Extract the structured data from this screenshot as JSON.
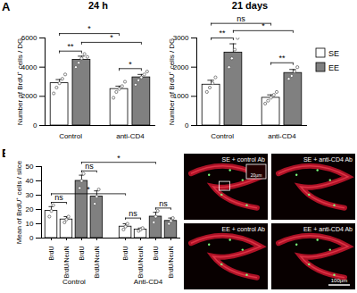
{
  "chart_data": [
    {
      "type": "bar",
      "panel": "A",
      "title": "24 h",
      "y_label": "Number of BrdU⁺ cells / DG",
      "categories": [
        "Control",
        "anti-CD4"
      ],
      "series": [
        {
          "name": "SE",
          "color": "#ffffff",
          "values": [
            2900,
            2500
          ],
          "errors": [
            250,
            200
          ],
          "points": [
            [
              2200,
              2600,
              2900,
              3200,
              3500
            ],
            [
              1900,
              2300,
              2500,
              2700,
              3000
            ]
          ]
        },
        {
          "name": "EE",
          "color": "#808080",
          "values": [
            4500,
            3300
          ],
          "errors": [
            250,
            200
          ],
          "points": [
            [
              4000,
              4300,
              4600,
              4900,
              4700
            ],
            [
              2800,
              3100,
              3300,
              3500,
              3700
            ]
          ]
        }
      ],
      "ylim": [
        0,
        6000
      ],
      "yticks": [
        0,
        2000,
        4000,
        6000
      ],
      "annotations": [
        {
          "text": "**",
          "from": 0,
          "to": 1,
          "y": 5100
        },
        {
          "text": "*",
          "from": 2,
          "to": 3,
          "y": 3900
        },
        {
          "text": "*",
          "from": 1,
          "to": 3,
          "y": 5700
        },
        {
          "text": "*",
          "from": 0,
          "to": 2,
          "y": 6300
        }
      ]
    },
    {
      "type": "bar",
      "title": "21 days",
      "y_label": "Number of BrdU⁺ cells / DG",
      "categories": [
        "Control",
        "anti-CD4"
      ],
      "series": [
        {
          "name": "SE",
          "color": "#ffffff",
          "values": [
            1400,
            950
          ],
          "errors": [
            150,
            100
          ],
          "points": [
            [
              1150,
              1300,
              1450,
              1650
            ],
            [
              750,
              850,
              950,
              1050,
              1150
            ]
          ]
        },
        {
          "name": "EE",
          "color": "#808080",
          "values": [
            2500,
            1800
          ],
          "errors": [
            300,
            120
          ],
          "points": [
            [
              2000,
              2300,
              2600,
              3000
            ],
            [
              1600,
              1700,
              1850,
              2000
            ]
          ]
        }
      ],
      "ylim": [
        0,
        3000
      ],
      "yticks": [
        0,
        1000,
        2000,
        3000
      ],
      "legend": "right",
      "annotations": [
        {
          "text": "**",
          "from": 0,
          "to": 1,
          "y": 3000
        },
        {
          "text": "**",
          "from": 2,
          "to": 3,
          "y": 2150
        },
        {
          "text": "*",
          "from": 1,
          "to": 3,
          "y": 3250
        },
        {
          "text": "ns",
          "from": 0,
          "to": 2,
          "y": 3500
        }
      ]
    },
    {
      "type": "bar",
      "panel": "B",
      "y_label": "Mean of BrdU⁺ cells / slice",
      "categories": [
        "Control",
        "Anti-CD4"
      ],
      "series": [
        {
          "name": "BrdU",
          "color": "#ffffff",
          "values": [
            19,
            8
          ],
          "errors": [
            3,
            2
          ],
          "points": [
            [
              15,
              19,
              23
            ],
            [
              6,
              8,
              10
            ]
          ]
        },
        {
          "name": "BrdU/NeuN",
          "color": "#ffffff",
          "values": [
            13,
            6
          ],
          "errors": [
            2,
            1
          ],
          "points": [
            [
              11,
              13,
              15
            ],
            [
              5,
              6,
              7
            ]
          ]
        },
        {
          "name": "BrdU",
          "color": "#808080",
          "values": [
            40,
            15
          ],
          "errors": [
            4,
            3
          ],
          "points": [
            [
              35,
              40,
              45
            ],
            [
              11,
              15,
              19
            ]
          ]
        },
        {
          "name": "BrdU/NeuN",
          "color": "#808080",
          "values": [
            29,
            12
          ],
          "errors": [
            4,
            2
          ],
          "points": [
            [
              24,
              29,
              34
            ],
            [
              10,
              12,
              14
            ]
          ]
        }
      ],
      "ylim": [
        0,
        50
      ],
      "yticks": [
        0,
        10,
        20,
        30,
        40,
        50
      ],
      "annotations": [
        {
          "text": "ns",
          "from": 0,
          "to": 1,
          "y": 25
        },
        {
          "text": "ns",
          "from": 2,
          "to": 3,
          "y": 47
        },
        {
          "text": "*",
          "from": 0,
          "to": 4,
          "y": 31
        },
        {
          "text": "*",
          "from": 2,
          "to": 6,
          "y": 53
        },
        {
          "text": "ns",
          "from": 4,
          "to": 5,
          "y": 14
        },
        {
          "text": "ns",
          "from": 6,
          "to": 7,
          "y": 21
        }
      ]
    }
  ],
  "images": {
    "panels": [
      "SE + control Ab",
      "SE + anti-CD4 Ab",
      "EE + control Ab",
      "EE + anti-CD4 Ab"
    ],
    "inset_scale": "20µm",
    "scale_bar": "100µm"
  }
}
